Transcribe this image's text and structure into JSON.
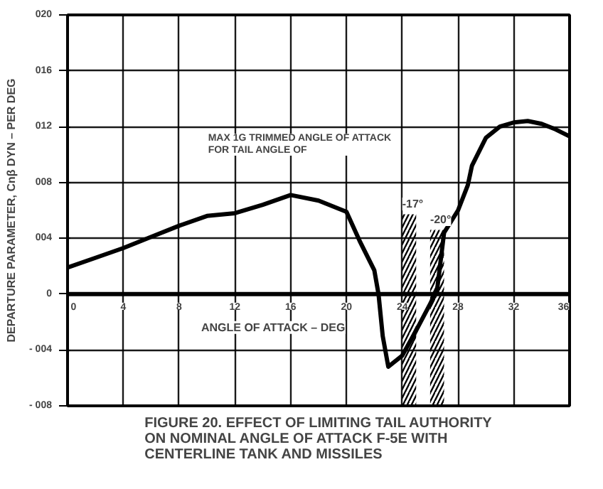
{
  "chart_data": {
    "type": "line",
    "title": "FIGURE 20. EFFECT OF LIMITING TAIL AUTHORITY\nON NOMINAL ANGLE OF ATTACK F-5E WITH\nCENTERLINE TANK AND MISSILES",
    "xlabel": "ANGLE OF ATTACK – DEG",
    "ylabel": "DEPARTURE PARAMETER, Cnβ DYN – PER DEG",
    "x": [
      0,
      2,
      4,
      6,
      8,
      10,
      12,
      14,
      16,
      18,
      20,
      21,
      22,
      22.3,
      22.6,
      23,
      24,
      25,
      26,
      26.5,
      27,
      28,
      28.7,
      29,
      30,
      31,
      32,
      33,
      34,
      35,
      36
    ],
    "series": [
      {
        "color": "#000000",
        "values": [
          1.9,
          2.6,
          3.3,
          4.1,
          4.9,
          5.6,
          5.8,
          6.4,
          7.1,
          6.7,
          5.9,
          3.7,
          1.7,
          0.0,
          -3.0,
          -5.2,
          -4.4,
          -2.6,
          -0.7,
          0.3,
          4.4,
          6.0,
          7.8,
          9.2,
          11.2,
          12.0,
          12.3,
          12.4,
          12.2,
          11.8,
          11.3
        ]
      }
    ],
    "xlim": [
      0,
      36
    ],
    "xticks": [
      0,
      4,
      8,
      12,
      16,
      20,
      24,
      28,
      32,
      36
    ],
    "ylim": [
      -8,
      20
    ],
    "yticks": [
      {
        "value": -8,
        "label": "- 008"
      },
      {
        "value": -4,
        "label": "- 004"
      },
      0,
      {
        "value": 4,
        "label": "004"
      },
      {
        "value": 8,
        "label": "008"
      },
      {
        "value": 12,
        "label": "012"
      },
      {
        "value": 16,
        "label": "016"
      },
      {
        "value": 20,
        "label": "020"
      }
    ],
    "bands": [
      {
        "axis": "x",
        "from": 24,
        "to": 25,
        "label": "-17°"
      },
      {
        "axis": "x",
        "from": 26,
        "to": 27,
        "label": "-20°"
      }
    ],
    "annotations": [
      "MAX 1G TRIMMED ANGLE OF ATTACK\nFOR TAIL ANGLE OF"
    ],
    "grid": true,
    "marker": "none",
    "line_style": "solid"
  }
}
